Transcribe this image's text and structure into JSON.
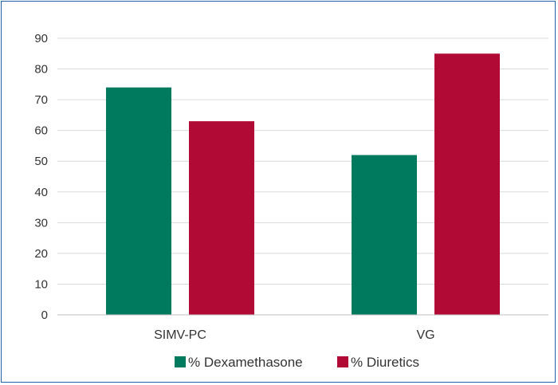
{
  "chart_data": {
    "type": "bar",
    "categories": [
      "SIMV-PC",
      "VG"
    ],
    "series": [
      {
        "name": "% Dexamethasone",
        "color": "#007a5e",
        "values": [
          74,
          52
        ]
      },
      {
        "name": "% Diuretics",
        "color": "#b00a35",
        "values": [
          63,
          85
        ]
      }
    ],
    "ylim": [
      0,
      90
    ],
    "yticks": [
      "0",
      "10",
      "20",
      "30",
      "40",
      "50",
      "60",
      "70",
      "80",
      "90"
    ],
    "grid": true,
    "legend_position": "bottom-center"
  }
}
